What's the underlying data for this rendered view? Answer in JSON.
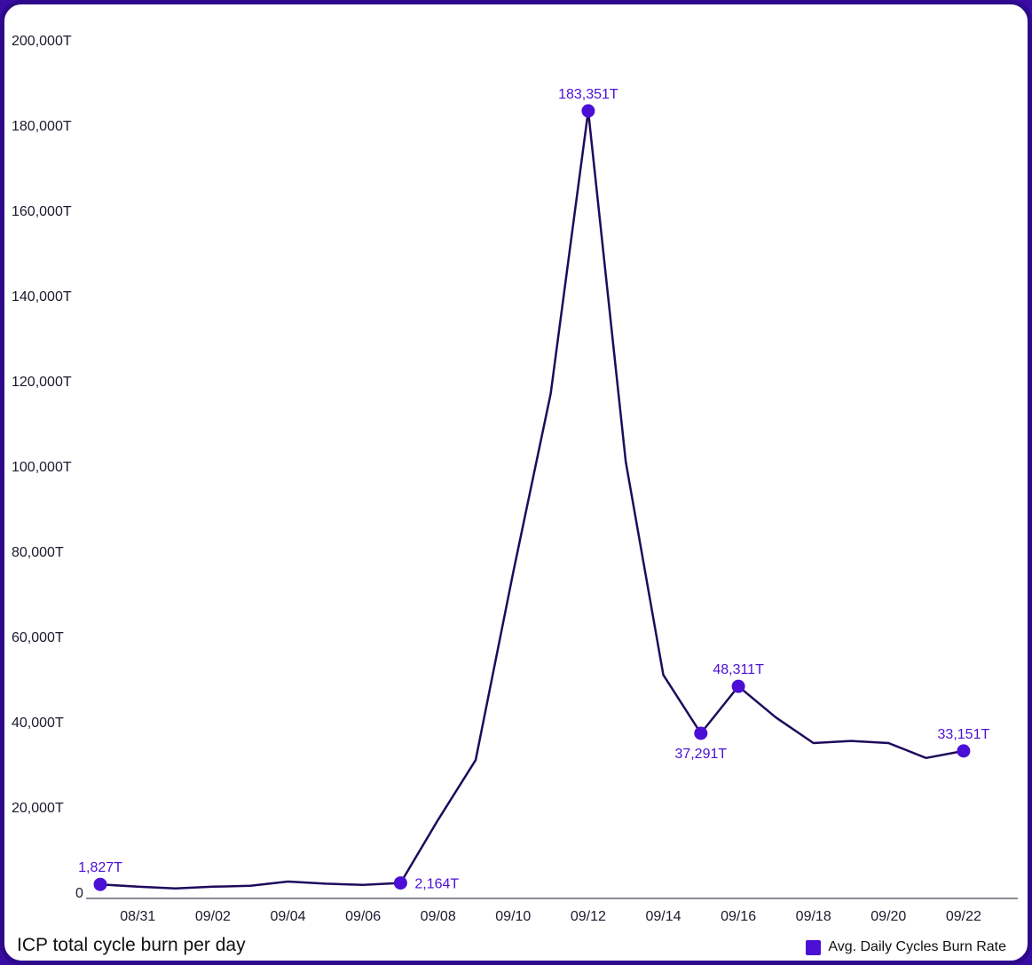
{
  "chart_data": {
    "type": "line",
    "title": "ICP total cycle burn per day",
    "unit_suffix": "T",
    "ylim": [
      0,
      200000
    ],
    "y_ticks": [
      0,
      20000,
      40000,
      60000,
      80000,
      100000,
      120000,
      140000,
      160000,
      180000,
      200000
    ],
    "y_tick_labels": [
      "0",
      "20,000T",
      "40,000T",
      "60,000T",
      "80,000T",
      "100,000T",
      "120,000T",
      "140,000T",
      "160,000T",
      "180,000T",
      "200,000T"
    ],
    "x_tick_labels": [
      "08/31",
      "09/02",
      "09/04",
      "09/06",
      "09/08",
      "09/10",
      "09/12",
      "09/14",
      "09/16",
      "09/18",
      "09/20",
      "09/22"
    ],
    "dates": [
      "08/30",
      "08/31",
      "09/01",
      "09/02",
      "09/03",
      "09/04",
      "09/05",
      "09/06",
      "09/07",
      "09/08",
      "09/09",
      "09/10",
      "09/11",
      "09/12",
      "09/13",
      "09/14",
      "09/15",
      "09/16",
      "09/17",
      "09/18",
      "09/19",
      "09/20",
      "09/21",
      "09/22"
    ],
    "series": [
      {
        "name": "Avg. Daily Cycles Burn Rate",
        "color": "#4b0fd6",
        "line_color": "#1e0a5c",
        "values": [
          1827,
          1300,
          900,
          1300,
          1500,
          2500,
          2000,
          1700,
          2164,
          17000,
          31000,
          75000,
          117000,
          183351,
          101000,
          51000,
          37291,
          48311,
          41000,
          35000,
          35500,
          35000,
          31500,
          33151
        ]
      }
    ],
    "annotations": [
      {
        "date": "08/30",
        "value": 1827,
        "text": "1,827T",
        "pos": "above"
      },
      {
        "date": "09/07",
        "value": 2164,
        "text": "2,164T",
        "pos": "right"
      },
      {
        "date": "09/12",
        "value": 183351,
        "text": "183,351T",
        "pos": "above"
      },
      {
        "date": "09/15",
        "value": 37291,
        "text": "37,291T",
        "pos": "below"
      },
      {
        "date": "09/16",
        "value": 48311,
        "text": "48,311T",
        "pos": "above"
      },
      {
        "date": "09/22",
        "value": 33151,
        "text": "33,151T",
        "pos": "above"
      }
    ],
    "legend": {
      "label": "Avg. Daily Cycles Burn Rate",
      "position": "bottom-right"
    },
    "grid": false
  }
}
